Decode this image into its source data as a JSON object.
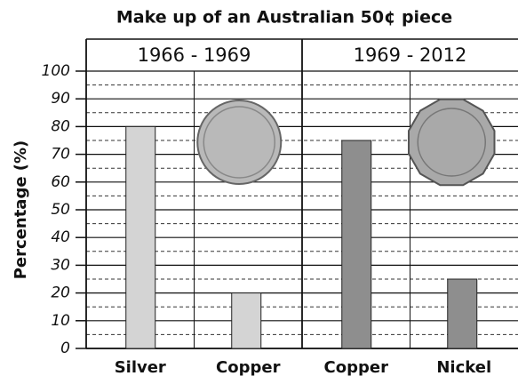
{
  "chart_data": {
    "type": "bar",
    "title": "Make up of an Australian 50¢ piece",
    "panels": [
      "1966 - 1969",
      "1969 - 2012"
    ],
    "ylabel": "Percentage (%)",
    "categories": [
      "Silver",
      "Copper",
      "Copper",
      "Nickel"
    ],
    "values": [
      80,
      20,
      75,
      25
    ],
    "colors": [
      "#d4d4d4",
      "#d4d4d4",
      "#8e8e8e",
      "#8e8e8e"
    ],
    "ylim": [
      0,
      100
    ],
    "yticks": [
      0,
      10,
      20,
      30,
      40,
      50,
      60,
      70,
      80,
      90,
      100
    ],
    "grid": true,
    "minor_grid": true
  }
}
